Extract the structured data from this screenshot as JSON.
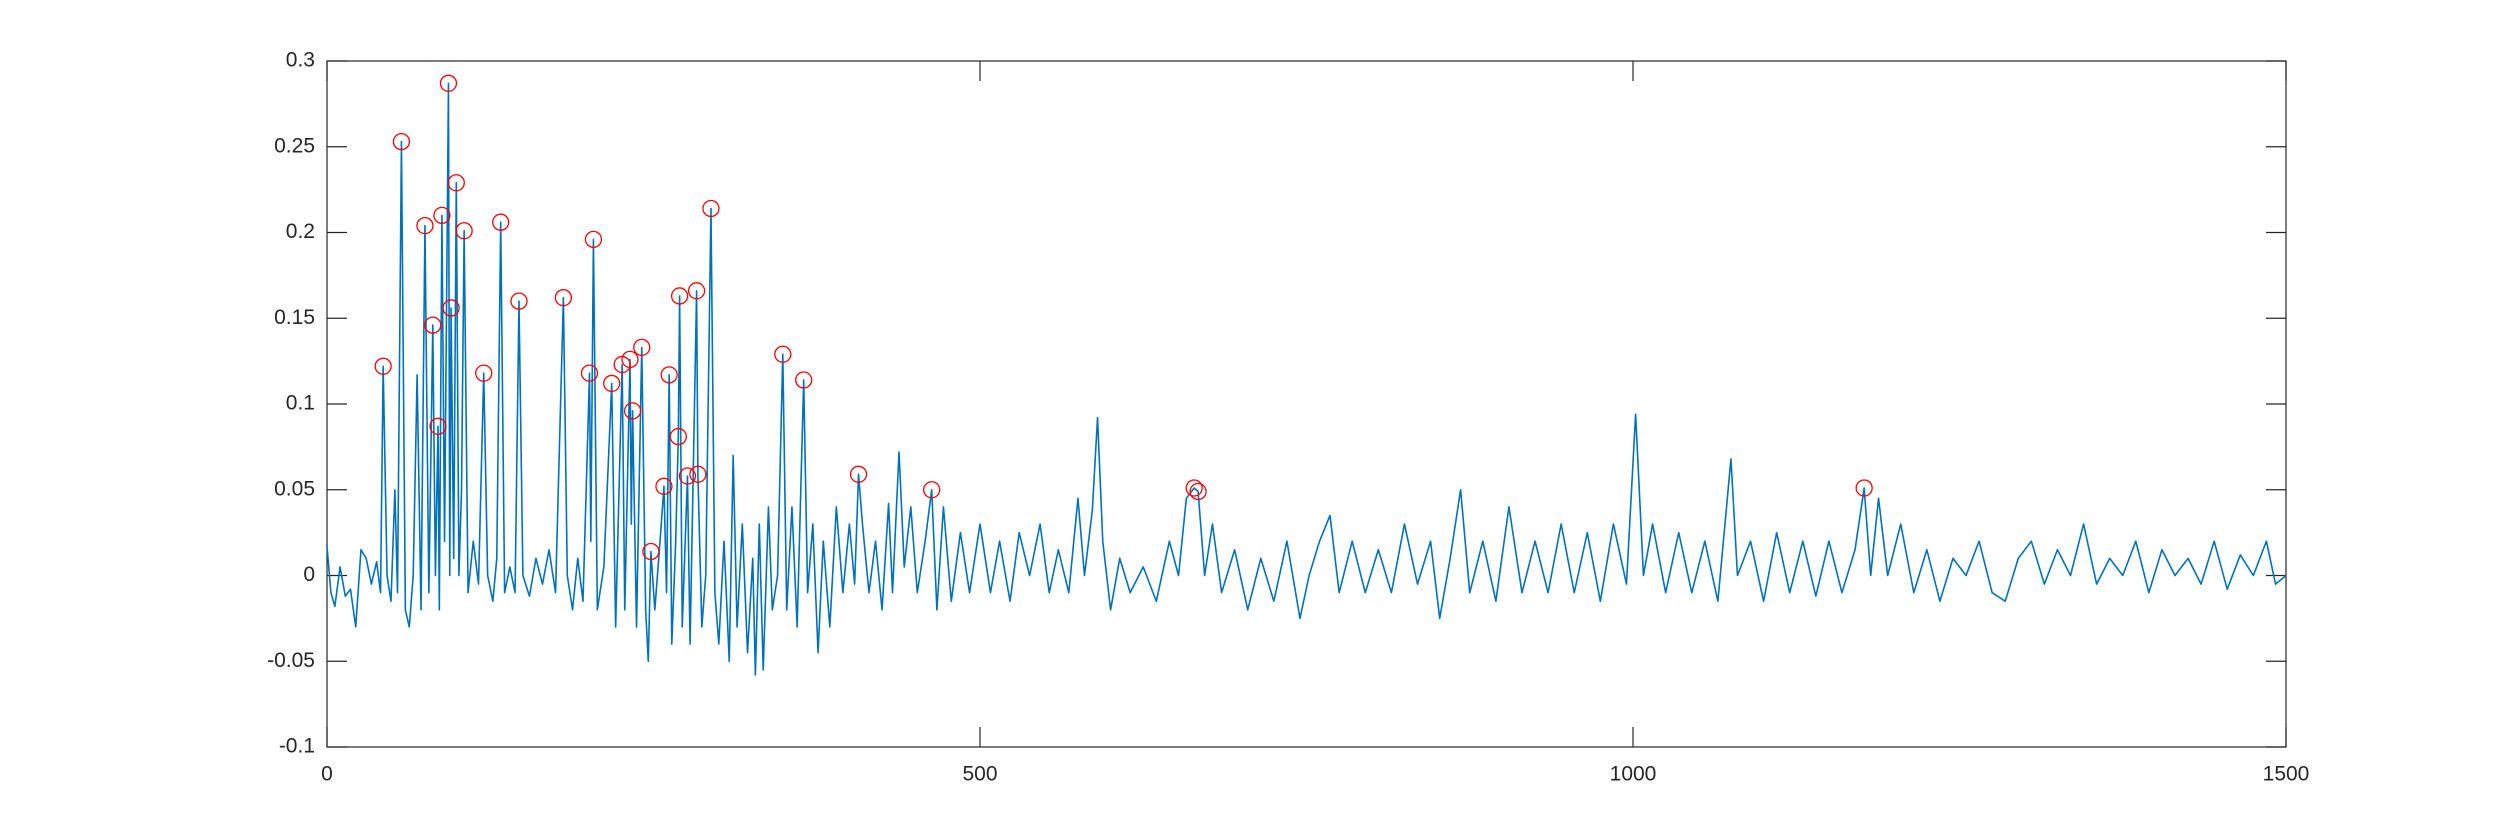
{
  "chart_data": {
    "type": "line",
    "xlim": [
      0,
      1500
    ],
    "xticks": [
      0,
      500,
      1000,
      1500
    ],
    "ylim": [
      -0.1,
      0.3
    ],
    "yticks": [
      -0.1,
      -0.05,
      0,
      0.05,
      0.1,
      0.15,
      0.2,
      0.25,
      0.3
    ],
    "grid": false,
    "series": [
      {
        "color": "#0072bd",
        "style": "line",
        "x": [
          0,
          3,
          6,
          10,
          14,
          18,
          22,
          26,
          30,
          34,
          38,
          41,
          43,
          46,
          49,
          52,
          54,
          57,
          60,
          63,
          66,
          69,
          72,
          75,
          78,
          81,
          83,
          85,
          86,
          88,
          90,
          93,
          94,
          95,
          97,
          99,
          101,
          103,
          105,
          108,
          112,
          116,
          120,
          123,
          127,
          130,
          133,
          136,
          140,
          144,
          147,
          150,
          155,
          160,
          165,
          170,
          175,
          181,
          184,
          188,
          192,
          196,
          201,
          202,
          204,
          207,
          212,
          218,
          221,
          226,
          228,
          232,
          233,
          234,
          237,
          241,
          244,
          246,
          248,
          251,
          255,
          258,
          260,
          262,
          264,
          267,
          269,
          270,
          272,
          276,
          278,
          283,
          284,
          287,
          290,
          294,
          297,
          300,
          304,
          308,
          311,
          314,
          318,
          322,
          326,
          328,
          331,
          334,
          338,
          341,
          345,
          349,
          352,
          356,
          360,
          365,
          368,
          372,
          376,
          380,
          385,
          390,
          395,
          400,
          404,
          407,
          410,
          415,
          420,
          425,
          430,
          433,
          438,
          442,
          447,
          452,
          458,
          463,
          467,
          472,
          478,
          485,
          492,
          500,
          508,
          515,
          523,
          530,
          538,
          546,
          553,
          560,
          568,
          575,
          580,
          586,
          590,
          594,
          600,
          607,
          615,
          625,
          635,
          645,
          652,
          658,
          664,
          667,
          672,
          678,
          685,
          695,
          705,
          715,
          725,
          735,
          745,
          752,
          760,
          768,
          775,
          785,
          795,
          805,
          815,
          825,
          835,
          845,
          852,
          860,
          868,
          875,
          885,
          895,
          905,
          915,
          925,
          935,
          945,
          955,
          965,
          975,
          985,
          995,
          1002,
          1008,
          1015,
          1025,
          1035,
          1045,
          1055,
          1065,
          1075,
          1080,
          1090,
          1100,
          1110,
          1120,
          1130,
          1140,
          1150,
          1160,
          1170,
          1177,
          1182,
          1188,
          1195,
          1205,
          1215,
          1225,
          1235,
          1245,
          1255,
          1265,
          1275,
          1285,
          1295,
          1305,
          1315,
          1325,
          1335,
          1345,
          1355,
          1365,
          1375,
          1385,
          1395,
          1405,
          1415,
          1425,
          1435,
          1445,
          1455,
          1465,
          1475,
          1485,
          1492,
          1500
        ],
        "values": [
          0.017,
          -0.01,
          -0.018,
          0.005,
          -0.012,
          -0.008,
          -0.03,
          0.015,
          0.01,
          -0.005,
          0.008,
          -0.01,
          0.122,
          0.0,
          -0.015,
          0.05,
          -0.01,
          0.253,
          -0.02,
          -0.03,
          0.0,
          0.117,
          -0.02,
          0.204,
          -0.01,
          0.146,
          0.0,
          0.087,
          -0.02,
          0.21,
          0.02,
          0.287,
          0.0,
          0.156,
          0.01,
          0.229,
          0.0,
          0.05,
          0.201,
          -0.01,
          0.02,
          -0.005,
          0.118,
          0.0,
          -0.015,
          0.01,
          0.206,
          -0.01,
          0.005,
          -0.01,
          0.16,
          0.0,
          -0.012,
          0.01,
          -0.005,
          0.015,
          -0.01,
          0.162,
          0.0,
          -0.02,
          0.01,
          -0.015,
          0.118,
          0.02,
          0.196,
          -0.02,
          0.005,
          0.112,
          -0.03,
          0.123,
          -0.02,
          0.126,
          0.03,
          0.096,
          -0.03,
          0.133,
          -0.02,
          -0.05,
          0.014,
          -0.02,
          0.02,
          0.052,
          -0.01,
          0.117,
          -0.04,
          0.02,
          0.081,
          0.163,
          -0.03,
          0.058,
          -0.04,
          0.166,
          0.059,
          -0.03,
          0.0,
          0.214,
          -0.01,
          -0.04,
          0.02,
          -0.05,
          0.07,
          -0.03,
          0.03,
          -0.045,
          0.01,
          -0.058,
          0.03,
          -0.055,
          0.04,
          -0.02,
          0.0,
          0.129,
          -0.02,
          0.04,
          -0.03,
          0.114,
          -0.01,
          0.03,
          -0.045,
          0.02,
          -0.03,
          0.04,
          -0.01,
          0.03,
          -0.005,
          0.059,
          0.03,
          -0.01,
          0.02,
          -0.02,
          0.042,
          -0.01,
          0.072,
          0.005,
          0.04,
          -0.01,
          0.02,
          0.05,
          -0.02,
          0.04,
          -0.015,
          0.025,
          -0.01,
          0.03,
          -0.01,
          0.02,
          -0.015,
          0.025,
          0.0,
          0.03,
          -0.01,
          0.015,
          -0.01,
          0.045,
          0.0,
          0.038,
          0.092,
          0.02,
          -0.02,
          0.01,
          -0.01,
          0.005,
          -0.015,
          0.02,
          0.0,
          0.045,
          0.051,
          0.049,
          0.0,
          0.03,
          -0.01,
          0.015,
          -0.02,
          0.01,
          -0.015,
          0.02,
          -0.025,
          0.0,
          0.02,
          0.035,
          -0.01,
          0.02,
          -0.01,
          0.015,
          -0.01,
          0.03,
          -0.005,
          0.02,
          -0.025,
          0.01,
          0.05,
          -0.01,
          0.02,
          -0.015,
          0.04,
          -0.01,
          0.02,
          -0.01,
          0.03,
          -0.01,
          0.025,
          -0.015,
          0.03,
          -0.005,
          0.094,
          0.0,
          0.03,
          -0.01,
          0.025,
          -0.01,
          0.02,
          -0.015,
          0.068,
          0.0,
          0.02,
          -0.015,
          0.025,
          -0.01,
          0.02,
          -0.012,
          0.02,
          -0.01,
          0.015,
          0.051,
          0.0,
          0.045,
          0.0,
          0.03,
          -0.01,
          0.015,
          -0.015,
          0.01,
          0.0,
          0.02,
          -0.01,
          -0.015,
          0.01,
          0.02,
          -0.005,
          0.015,
          0.0,
          0.03,
          -0.005,
          0.01,
          0.0,
          0.02,
          -0.01,
          0.015,
          0.0,
          0.01,
          -0.005,
          0.02,
          -0.008,
          0.012,
          0.0,
          0.02,
          -0.005,
          0.0
        ]
      },
      {
        "color": "#ff0000",
        "style": "markers",
        "x": [
          43,
          57,
          75,
          81,
          85,
          88,
          93,
          95,
          99,
          105,
          120,
          133,
          147,
          181,
          201,
          204,
          218,
          226,
          232,
          234,
          241,
          248,
          258,
          262,
          269,
          270,
          276,
          283,
          284,
          294,
          349,
          365,
          407,
          463,
          664,
          667,
          1177
        ],
        "values": [
          0.122,
          0.253,
          0.204,
          0.146,
          0.087,
          0.21,
          0.287,
          0.156,
          0.229,
          0.201,
          0.118,
          0.206,
          0.16,
          0.162,
          0.118,
          0.196,
          0.112,
          0.123,
          0.126,
          0.096,
          0.133,
          0.014,
          0.052,
          0.117,
          0.081,
          0.163,
          0.058,
          0.166,
          0.059,
          0.214,
          0.129,
          0.114,
          0.059,
          0.05,
          0.051,
          0.049,
          0.051
        ]
      }
    ]
  }
}
